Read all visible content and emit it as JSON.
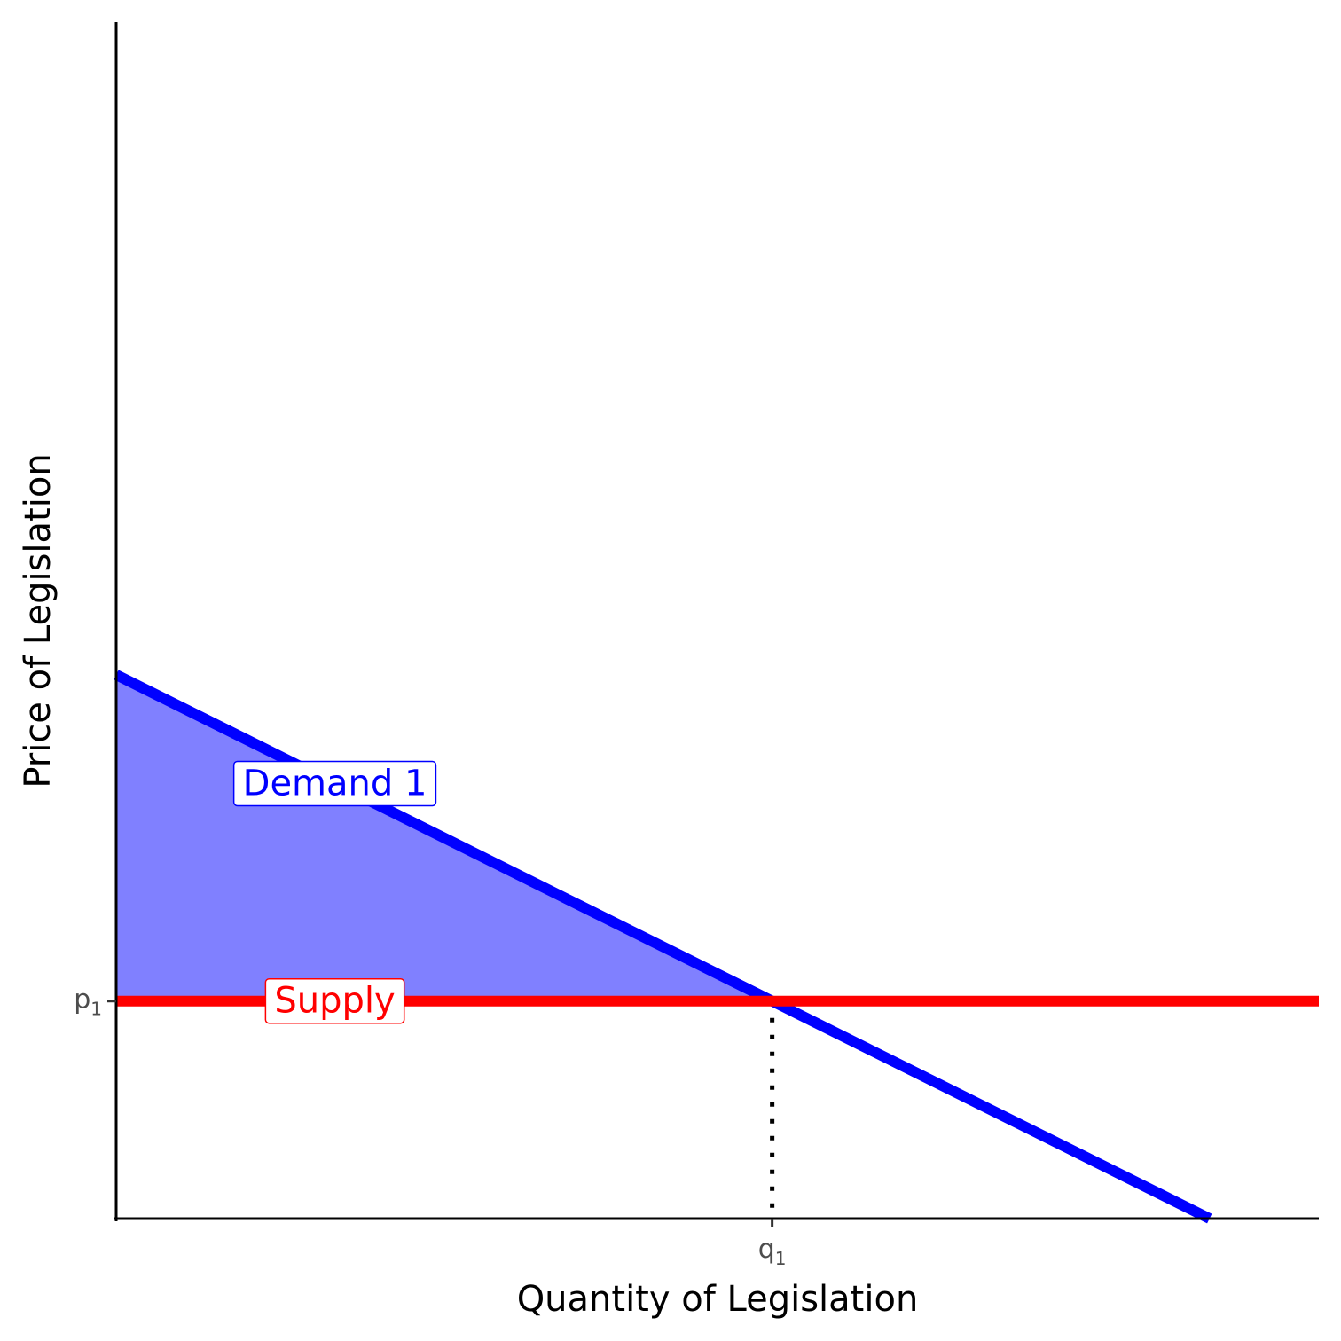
{
  "chart_data": {
    "type": "line",
    "xlabel": "Quantity of Legislation",
    "ylabel": "Price of Legislation",
    "xlim": [
      0,
      11
    ],
    "ylim": [
      0,
      11
    ],
    "grid": false,
    "legend": "none",
    "series": [
      {
        "name": "Demand 1",
        "color": "#0000ff",
        "x": [
          0,
          10
        ],
        "y": [
          5,
          0
        ]
      },
      {
        "name": "Supply",
        "color": "#ff0000",
        "x": [
          0,
          11
        ],
        "y": [
          2,
          2
        ]
      }
    ],
    "shaded_area": {
      "name": "consumer-surplus",
      "color": "#8080ff",
      "points": [
        [
          0,
          5
        ],
        [
          6,
          2
        ],
        [
          0,
          2
        ]
      ]
    },
    "equilibrium": {
      "x": 6,
      "y": 2
    },
    "x_ticks": [
      {
        "value": 6,
        "label": "q",
        "sub": "1"
      }
    ],
    "y_ticks": [
      {
        "value": 2,
        "label": "p",
        "sub": "1"
      }
    ],
    "labels": [
      {
        "text": "Demand 1",
        "x": 2,
        "y": 4,
        "color": "#0000ff"
      },
      {
        "text": "Supply",
        "x": 2,
        "y": 2,
        "color": "#ff0000"
      }
    ]
  }
}
